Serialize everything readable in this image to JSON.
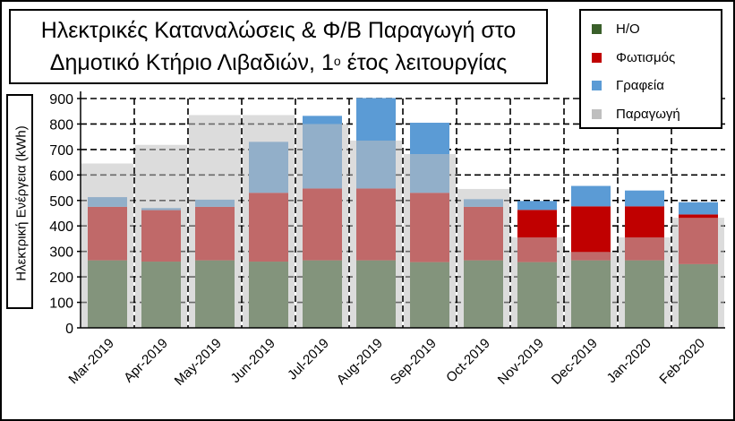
{
  "chart_data": {
    "type": "bar",
    "title_line1": "Ηλεκτρικές Καταναλώσεις & Φ/Β Παραγωγή στο",
    "title_line2_pre": "Δημοτικό Κτήριο Λιβαδιών, 1",
    "title_line2_sup": "ο",
    "title_line2_post": " έτος λειτουργίας",
    "ylabel": "Ηλεκτρική Ενέργεια (kWh)",
    "xlabel": "",
    "ylim": [
      0,
      900
    ],
    "yticks": [
      "0",
      "100",
      "200",
      "300",
      "400",
      "500",
      "600",
      "700",
      "800",
      "900"
    ],
    "grid": true,
    "legend_position": "top-right",
    "categories": [
      "Mar-2019",
      "Apr-2019",
      "May-2019",
      "Jun-2019",
      "Jul-2019",
      "Aug-2019",
      "Sep-2019",
      "Oct-2019",
      "Nov-2019",
      "Dec-2019",
      "Jan-2020",
      "Feb-2020"
    ],
    "stacked_series": [
      {
        "name": "Η/Ο",
        "color": "#3a5f2a",
        "values": [
          265,
          260,
          265,
          260,
          265,
          265,
          258,
          265,
          258,
          265,
          265,
          250
        ]
      },
      {
        "name": "Φωτισμός",
        "color": "#c00000",
        "values": [
          210,
          202,
          210,
          270,
          282,
          282,
          272,
          210,
          205,
          212,
          212,
          195
        ]
      },
      {
        "name": "Γραφεία",
        "color": "#5b9bd5",
        "values": [
          38,
          8,
          28,
          200,
          285,
          355,
          275,
          30,
          35,
          80,
          62,
          48
        ]
      }
    ],
    "production_series": {
      "name": "Παραγωγή",
      "color": "#bfbfbf",
      "values": [
        645,
        718,
        835,
        835,
        800,
        735,
        682,
        545,
        355,
        298,
        355,
        432
      ]
    }
  }
}
